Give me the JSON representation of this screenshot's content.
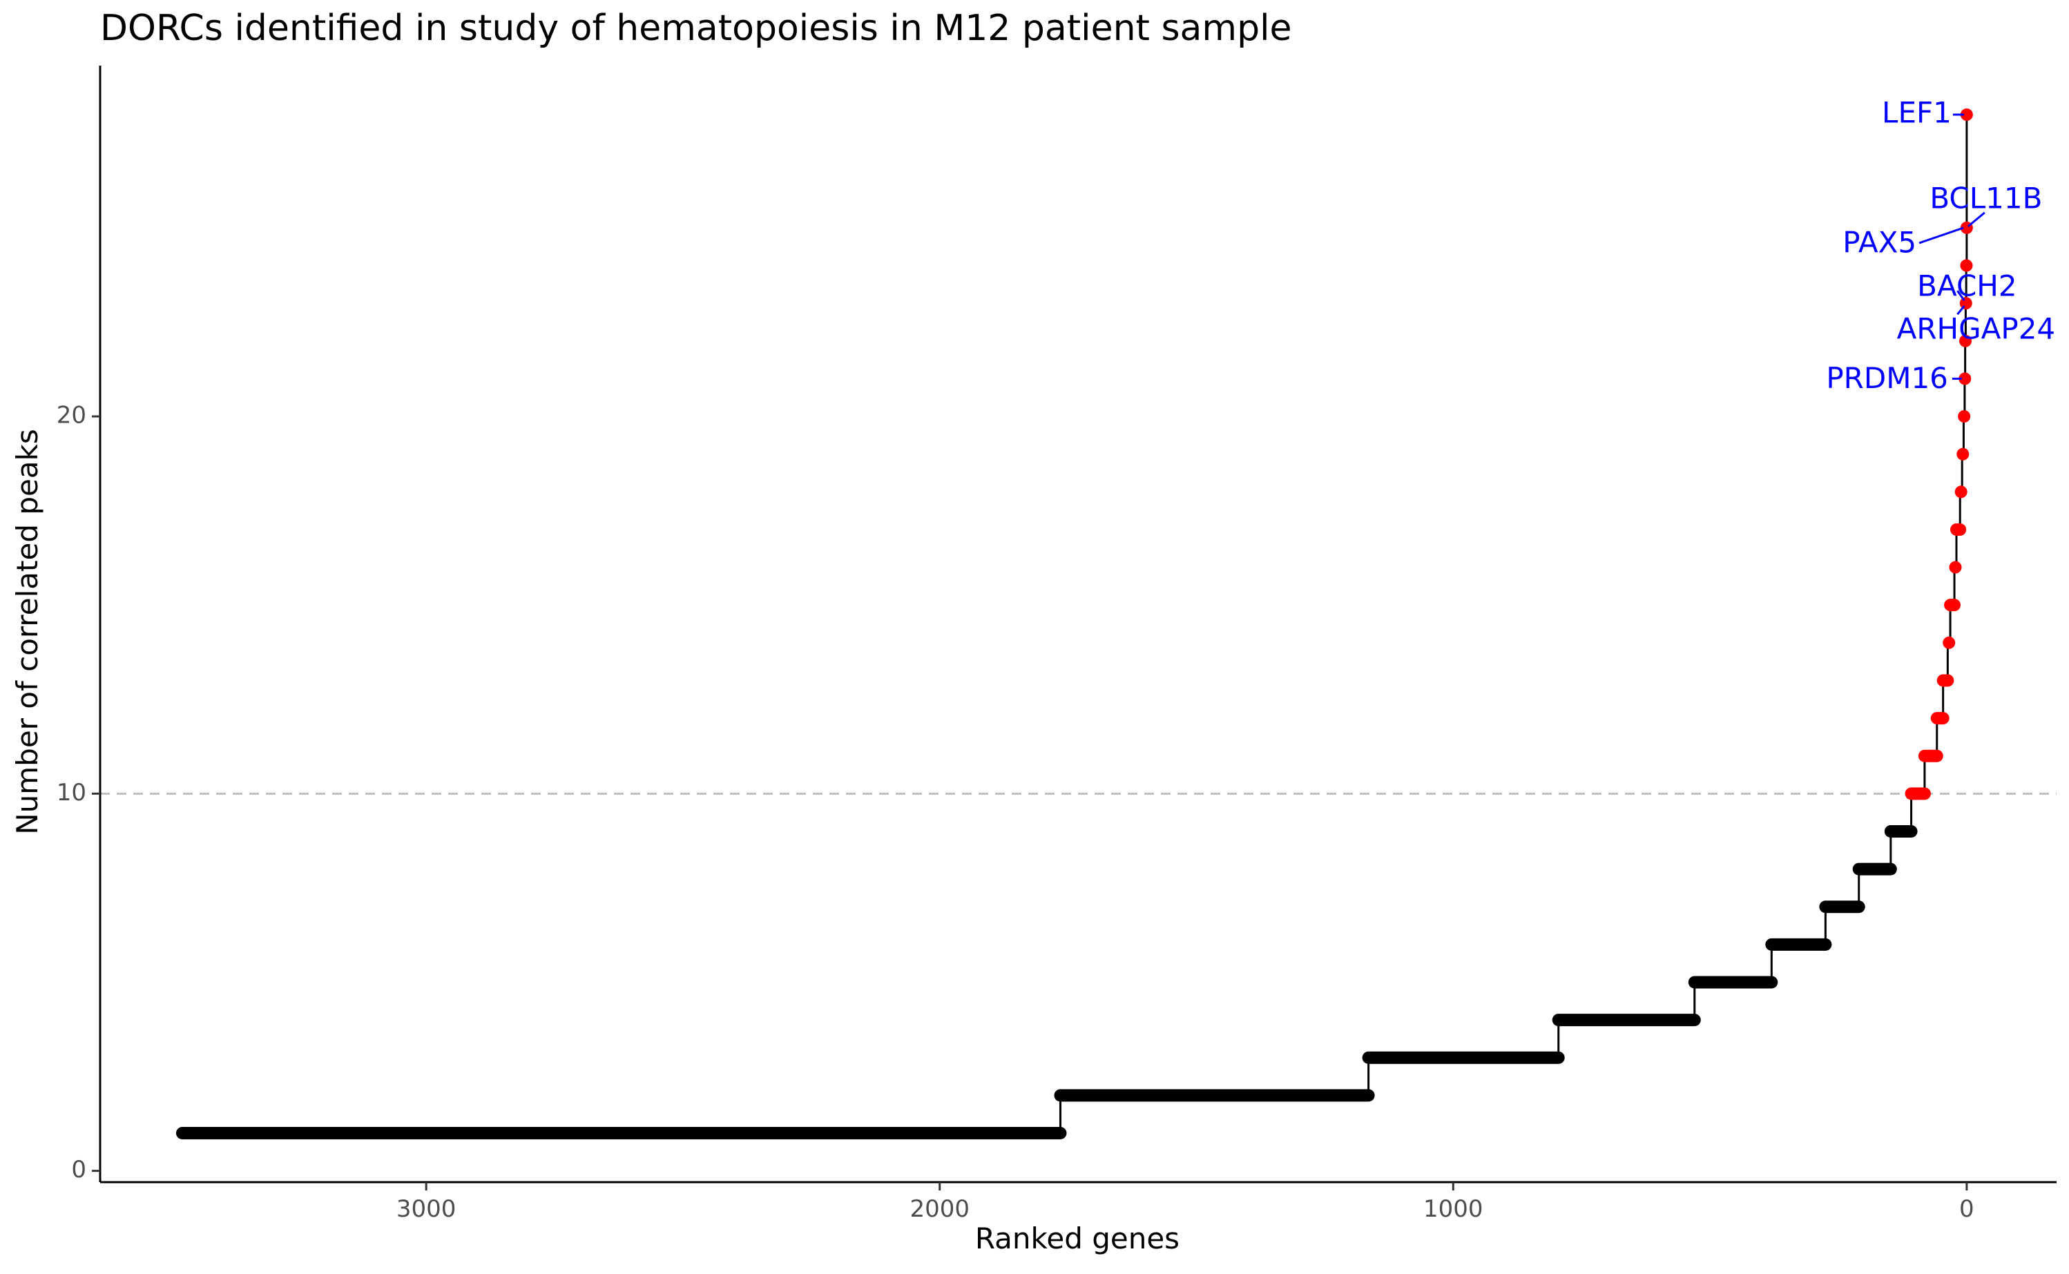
{
  "chart_data": {
    "type": "scatter",
    "title": "DORCs identified in study of hematopoiesis in M12 patient sample",
    "xlabel": "Ranked genes",
    "ylabel": "Number of correlated peaks",
    "x_axis_reversed": true,
    "xlim": [
      3635,
      -175
    ],
    "ylim": [
      -0.3,
      29.3
    ],
    "x_ticks": [
      3000,
      2000,
      1000,
      0
    ],
    "y_ticks": [
      0,
      10,
      20
    ],
    "threshold": 10,
    "grid": false,
    "legend": "none",
    "colors": {
      "below_threshold": "#000000",
      "above_threshold": "#ff0000",
      "label": "#0000ff",
      "threshold_line": "#bebebe"
    },
    "steps": [
      {
        "value": 1,
        "x_from": 3475,
        "x_to": 1765
      },
      {
        "value": 2,
        "x_from": 1765,
        "x_to": 1165
      },
      {
        "value": 3,
        "x_from": 1165,
        "x_to": 795
      },
      {
        "value": 4,
        "x_from": 795,
        "x_to": 530
      },
      {
        "value": 5,
        "x_from": 530,
        "x_to": 380
      },
      {
        "value": 6,
        "x_from": 380,
        "x_to": 275
      },
      {
        "value": 7,
        "x_from": 275,
        "x_to": 210
      },
      {
        "value": 8,
        "x_from": 210,
        "x_to": 148
      },
      {
        "value": 9,
        "x_from": 148,
        "x_to": 108
      },
      {
        "value": 10,
        "x_from": 108,
        "x_to": 82
      },
      {
        "value": 11,
        "x_from": 82,
        "x_to": 58
      },
      {
        "value": 12,
        "x_from": 58,
        "x_to": 46
      },
      {
        "value": 13,
        "x_from": 46,
        "x_to": 37
      },
      {
        "value": 14,
        "x_from": 37,
        "x_to": 32
      },
      {
        "value": 15,
        "x_from": 32,
        "x_to": 24
      },
      {
        "value": 16,
        "x_from": 24,
        "x_to": 20
      },
      {
        "value": 17,
        "x_from": 20,
        "x_to": 13
      },
      {
        "value": 18,
        "x_from": 13,
        "x_to": 9
      },
      {
        "value": 19,
        "x_from": 9,
        "x_to": 6
      },
      {
        "value": 20,
        "x_from": 6,
        "x_to": 4
      },
      {
        "value": 21,
        "x_from": 4,
        "x_to": 3
      },
      {
        "value": 22,
        "x_from": 3,
        "x_to": 2
      },
      {
        "value": 23,
        "x_from": 2,
        "x_to": 1
      },
      {
        "value": 24,
        "x_from": 1,
        "x_to": 0
      },
      {
        "value": 25,
        "x_from": 0,
        "x_to": 0
      },
      {
        "value": 28,
        "x_from": 0,
        "x_to": 0
      }
    ],
    "labels": [
      {
        "text": "LEF1",
        "x": 0,
        "y": 28
      },
      {
        "text": "BCL11B",
        "x": 0,
        "y": 25
      },
      {
        "text": "PAX5",
        "x": 1,
        "y": 25
      },
      {
        "text": "BACH2",
        "x": 2,
        "y": 23
      },
      {
        "text": "ARHGAP24",
        "x": 2,
        "y": 23
      },
      {
        "text": "PRDM16",
        "x": 4,
        "y": 21
      }
    ]
  }
}
